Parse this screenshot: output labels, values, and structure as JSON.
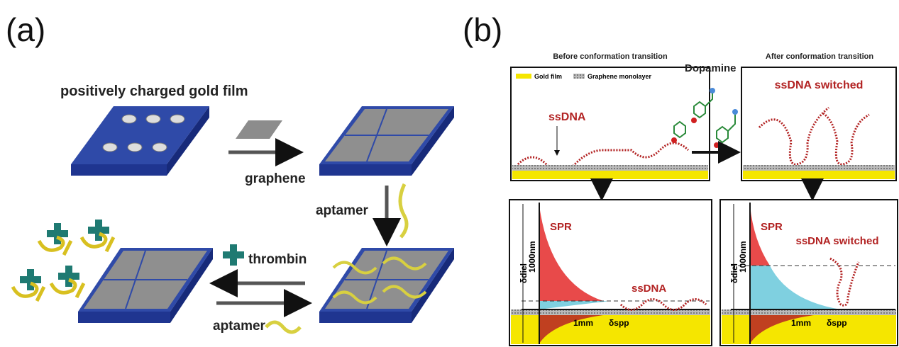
{
  "panel_a": {
    "label": "(a)",
    "title": "positively charged gold film",
    "steps": [
      "graphene",
      "aptamer",
      "thrombin",
      "aptamer"
    ]
  },
  "panel_b": {
    "label": "(b)",
    "reagent": "Dopamine",
    "before": {
      "title": "Before conformation transition",
      "legend": [
        "Gold film",
        "Graphene monolayer"
      ],
      "molecule": "ssDNA",
      "plot": {
        "peak": "SPR",
        "y_axis": "δdiel",
        "depth": "1000nm",
        "distance": "1mm",
        "x_axis": "δspp",
        "molecule": "ssDNA"
      }
    },
    "after": {
      "title": "After conformation transition",
      "molecule": "ssDNA switched",
      "plot": {
        "peak": "SPR",
        "y_axis": "δdiel",
        "depth": "1000nm",
        "distance": "1mm",
        "x_axis": "δspp",
        "molecule": "ssDNA switched"
      }
    }
  }
}
